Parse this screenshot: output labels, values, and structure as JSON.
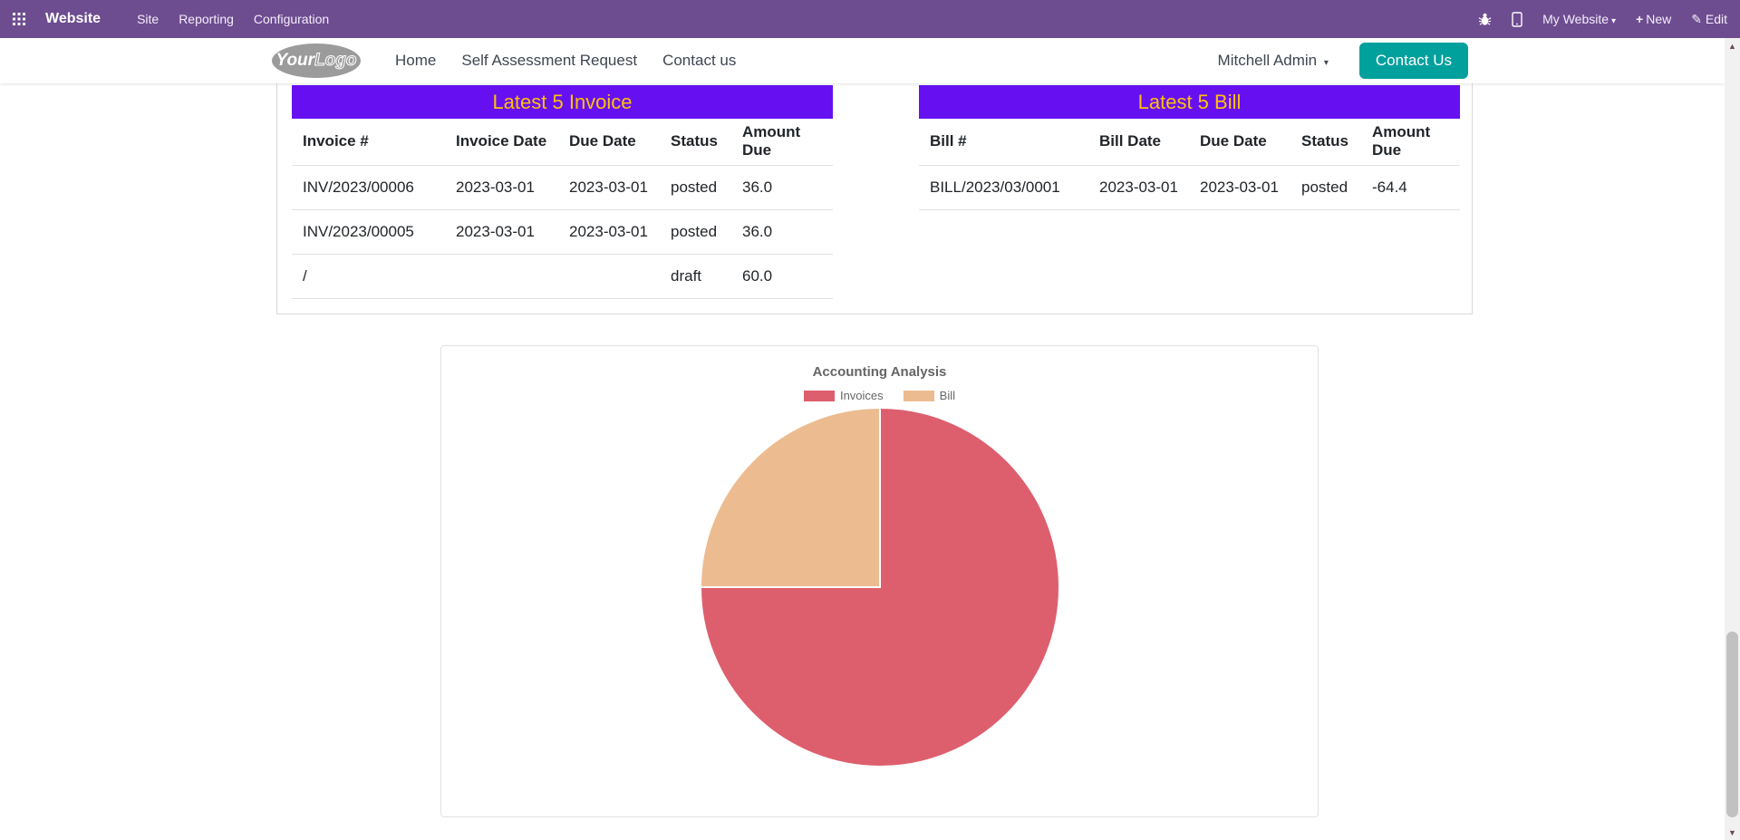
{
  "topbar": {
    "brand": "Website",
    "menus": [
      "Site",
      "Reporting",
      "Configuration"
    ],
    "website_switcher": "My Website",
    "new_label": "New",
    "edit_label": "Edit"
  },
  "site_header": {
    "logo_part1": "Your",
    "logo_part2": "Logo",
    "nav": [
      "Home",
      "Self Assessment Request",
      "Contact us"
    ],
    "user_menu": "Mitchell Admin",
    "contact_button": "Contact Us"
  },
  "invoice_table": {
    "title": "Latest 5 Invoice",
    "columns": [
      "Invoice #",
      "Invoice Date",
      "Due Date",
      "Status",
      "Amount Due"
    ],
    "rows": [
      [
        "INV/2023/00006",
        "2023-03-01",
        "2023-03-01",
        "posted",
        "36.0"
      ],
      [
        "INV/2023/00005",
        "2023-03-01",
        "2023-03-01",
        "posted",
        "36.0"
      ],
      [
        "/",
        "",
        "",
        "draft",
        "60.0"
      ]
    ]
  },
  "bill_table": {
    "title": "Latest 5 Bill",
    "columns": [
      "Bill #",
      "Bill Date",
      "Due Date",
      "Status",
      "Amount Due"
    ],
    "rows": [
      [
        "BILL/2023/03/0001",
        "2023-03-01",
        "2023-03-01",
        "posted",
        "-64.4"
      ]
    ]
  },
  "chart_data": {
    "type": "pie",
    "title": "Accounting Analysis",
    "categories": [
      "Invoices",
      "Bill"
    ],
    "values": [
      75,
      25
    ],
    "value_note": "percent of pie estimated from slice angles: Invoices ~270deg, Bill ~90deg",
    "colors": [
      "#dd5f6e",
      "#ecbc90"
    ],
    "legend_position": "top"
  },
  "colors": {
    "topbar_bg": "#6d4c90",
    "table_title_bg": "#6610f2",
    "table_title_text": "#ffc107",
    "contact_button_bg": "#00a09d"
  }
}
